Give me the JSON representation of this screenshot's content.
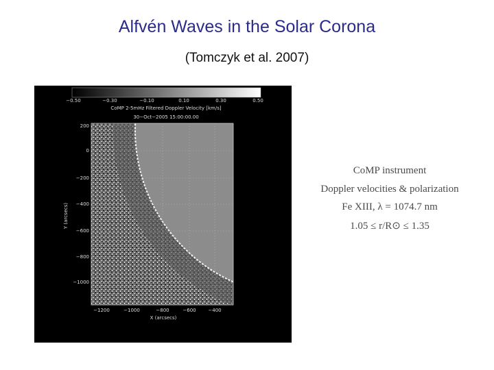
{
  "header": {
    "title": "Alfvén Waves in the Solar Corona",
    "subtitle": "(Tomczyk et al. 2007)"
  },
  "figure": {
    "colorbar_ticks": [
      "−0.50",
      "−0.30",
      "−0.10",
      "0.10",
      "0.30",
      "0.50"
    ],
    "caption": "CoMP 2-5mHz Filtered Doppler Velocity [km/s]",
    "date": "30−Oct−2005 15:00:00.00",
    "y_label": "Y (arcsecs)",
    "x_label": "X (arcsecs)",
    "y_ticks": [
      "200",
      "0",
      "−200",
      "−400",
      "−600",
      "−800",
      "−1000"
    ],
    "x_ticks": [
      "−1200",
      "−1000",
      "−800",
      "−600",
      "−400"
    ]
  },
  "notes": [
    "CoMP instrument",
    "Doppler velocities & polarization",
    "Fe XIII,   λ = 1074.7 nm",
    "1.05 ≤ r/R⊙ ≤ 1.35"
  ]
}
